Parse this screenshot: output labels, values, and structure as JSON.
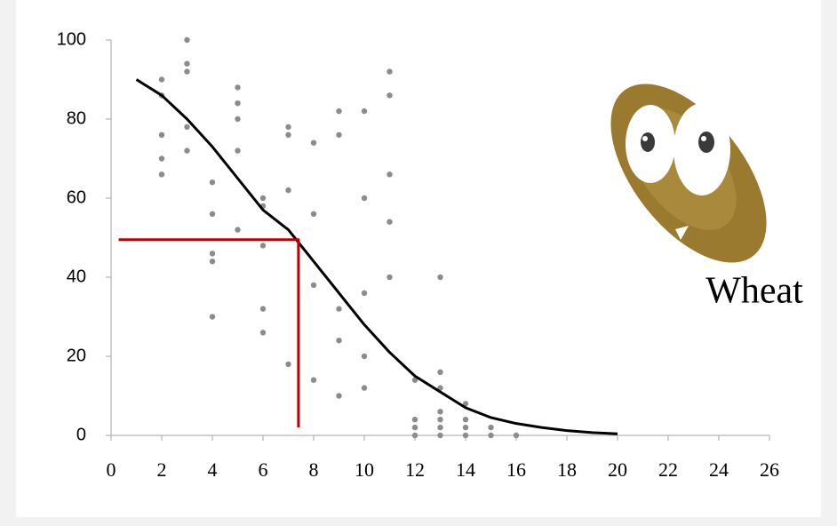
{
  "chart_data": {
    "type": "scatter",
    "annotation": "Wheat",
    "xlim": [
      0,
      26
    ],
    "xticks": [
      0,
      2,
      4,
      6,
      8,
      10,
      12,
      14,
      16,
      18,
      20,
      22,
      24,
      26
    ],
    "ylim": [
      0,
      100
    ],
    "yticks": [
      0,
      20,
      40,
      60,
      80,
      100
    ],
    "grid": false,
    "series": [
      {
        "type": "scatter",
        "color": "#8c8c8c",
        "x": [
          2,
          2,
          2,
          2,
          2,
          3,
          3,
          3,
          3,
          3,
          4,
          4,
          4,
          4,
          4,
          5,
          5,
          5,
          5,
          5,
          6,
          6,
          6,
          6,
          6,
          7,
          7,
          7,
          7,
          8,
          8,
          8,
          8,
          9,
          9,
          9,
          9,
          9,
          10,
          10,
          10,
          10,
          10,
          11,
          11,
          11,
          11,
          11,
          12,
          12,
          12,
          12,
          13,
          13,
          13,
          13,
          13,
          13,
          13,
          14,
          14,
          14,
          14,
          15,
          15,
          16
        ],
        "values": [
          90,
          86,
          76,
          70,
          66,
          100,
          94,
          92,
          78,
          72,
          64,
          56,
          46,
          44,
          30,
          88,
          84,
          80,
          72,
          52,
          60,
          58,
          48,
          32,
          26,
          78,
          76,
          62,
          18,
          74,
          56,
          38,
          14,
          82,
          76,
          32,
          24,
          10,
          82,
          60,
          36,
          20,
          12,
          92,
          86,
          66,
          54,
          40,
          14,
          4,
          2,
          0,
          40,
          16,
          12,
          6,
          4,
          2,
          0,
          8,
          4,
          2,
          0,
          2,
          0,
          0
        ]
      },
      {
        "type": "line",
        "color": "#000000",
        "x": [
          1,
          2,
          3,
          4,
          5,
          6,
          7,
          8,
          9,
          10,
          11,
          12,
          13,
          14,
          15,
          16,
          17,
          18,
          19,
          20
        ],
        "values": [
          90,
          86,
          80,
          73,
          65,
          57,
          52,
          44,
          36,
          28,
          21,
          15,
          11,
          7,
          4.5,
          3,
          2,
          1.2,
          0.7,
          0.4
        ]
      },
      {
        "type": "line",
        "color": "#c00000",
        "x": [
          0.3,
          7.4,
          7.4
        ],
        "values": [
          49.5,
          49.5,
          2
        ]
      }
    ]
  }
}
